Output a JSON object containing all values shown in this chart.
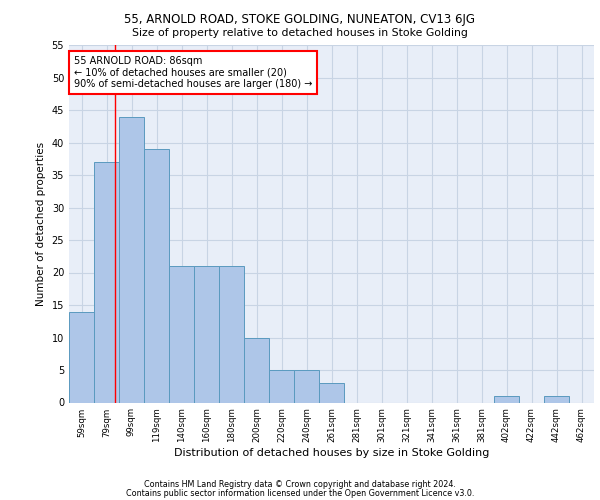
{
  "title1": "55, ARNOLD ROAD, STOKE GOLDING, NUNEATON, CV13 6JG",
  "title2": "Size of property relative to detached houses in Stoke Golding",
  "xlabel": "Distribution of detached houses by size in Stoke Golding",
  "ylabel": "Number of detached properties",
  "footnote1": "Contains HM Land Registry data © Crown copyright and database right 2024.",
  "footnote2": "Contains public sector information licensed under the Open Government Licence v3.0.",
  "categories": [
    "59sqm",
    "79sqm",
    "99sqm",
    "119sqm",
    "140sqm",
    "160sqm",
    "180sqm",
    "200sqm",
    "220sqm",
    "240sqm",
    "261sqm",
    "281sqm",
    "301sqm",
    "321sqm",
    "341sqm",
    "361sqm",
    "381sqm",
    "402sqm",
    "422sqm",
    "442sqm",
    "462sqm"
  ],
  "values": [
    14,
    37,
    44,
    39,
    21,
    21,
    21,
    10,
    5,
    5,
    3,
    0,
    0,
    0,
    0,
    0,
    0,
    1,
    0,
    1,
    0
  ],
  "bar_color": "#aec6e8",
  "bar_edge_color": "#5a9abf",
  "bar_edge_width": 0.7,
  "grid_color": "#c8d4e4",
  "bg_color": "#e8eef8",
  "annotation_text": "55 ARNOLD ROAD: 86sqm\n← 10% of detached houses are smaller (20)\n90% of semi-detached houses are larger (180) →",
  "annotation_box_color": "white",
  "annotation_box_edge": "red",
  "red_line_x": 1.35,
  "ylim": [
    0,
    55
  ],
  "yticks": [
    0,
    5,
    10,
    15,
    20,
    25,
    30,
    35,
    40,
    45,
    50,
    55
  ]
}
